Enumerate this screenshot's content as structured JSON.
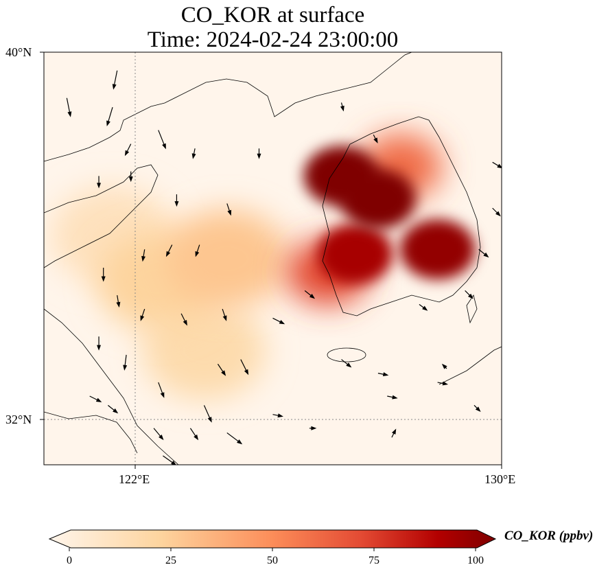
{
  "title": {
    "line1": "CO_KOR at surface",
    "line2": "Time: 2024-02-24 23:00:00"
  },
  "axes": {
    "lon_range": [
      120,
      130
    ],
    "lat_range": [
      31,
      40
    ],
    "lon_ticks": [
      {
        "value": 122,
        "label": "122°E"
      },
      {
        "value": 130,
        "label": "130°E"
      }
    ],
    "lat_ticks": [
      {
        "value": 40,
        "label": "40°N"
      },
      {
        "value": 32,
        "label": "32°N"
      }
    ],
    "gridlines": "dotted"
  },
  "colorbar": {
    "label": "CO_KOR (ppbv)",
    "min": 0,
    "max": 100,
    "extend": "both",
    "ticks": [
      "0",
      "25",
      "50",
      "75",
      "100"
    ],
    "colors": [
      "#fff5eb",
      "#fdd49e",
      "#fc8d59",
      "#d7301f",
      "#b30000",
      "#7f0000"
    ]
  },
  "chart_data": {
    "type": "heatmap",
    "variable": "CO_KOR",
    "units": "ppbv",
    "plume_centers": [
      {
        "lon": 126.5,
        "lat": 37.3,
        "value": 100
      },
      {
        "lon": 127.3,
        "lat": 36.8,
        "value": 100
      },
      {
        "lon": 126.8,
        "lat": 35.6,
        "value": 90
      },
      {
        "lon": 128.6,
        "lat": 35.7,
        "value": 95
      },
      {
        "lon": 126.2,
        "lat": 35.2,
        "value": 70
      },
      {
        "lon": 127.8,
        "lat": 37.5,
        "value": 60
      },
      {
        "lon": 124.0,
        "lat": 35.5,
        "value": 30
      },
      {
        "lon": 122.5,
        "lat": 35.0,
        "value": 25
      },
      {
        "lon": 123.5,
        "lat": 33.5,
        "value": 20
      },
      {
        "lon": 121.5,
        "lat": 36.0,
        "value": 15
      }
    ],
    "wind_vectors": [
      [
        120.5,
        39.0,
        0.2,
        -1
      ],
      [
        121.6,
        39.6,
        -0.2,
        -1
      ],
      [
        121.5,
        38.8,
        -0.3,
        -1
      ],
      [
        122.5,
        38.3,
        0.4,
        -1
      ],
      [
        121.9,
        38.0,
        -0.3,
        -0.6
      ],
      [
        123.3,
        37.9,
        -0.1,
        -0.5
      ],
      [
        124.7,
        37.9,
        0,
        -0.5
      ],
      [
        126.5,
        38.9,
        0.1,
        -0.4
      ],
      [
        127.2,
        38.2,
        0.2,
        -0.4
      ],
      [
        121.2,
        37.3,
        0,
        -0.6
      ],
      [
        121.9,
        37.4,
        0,
        -0.5
      ],
      [
        122.9,
        36.9,
        0,
        -0.6
      ],
      [
        124.0,
        36.7,
        0.2,
        -0.6
      ],
      [
        123.4,
        35.8,
        -0.2,
        -0.6
      ],
      [
        122.8,
        35.8,
        -0.3,
        -0.6
      ],
      [
        122.2,
        35.7,
        -0.1,
        -0.6
      ],
      [
        121.3,
        35.3,
        0,
        -0.7
      ],
      [
        121.6,
        34.7,
        0.1,
        -0.6
      ],
      [
        122.2,
        34.4,
        -0.2,
        -0.6
      ],
      [
        123.0,
        34.3,
        0.3,
        -0.6
      ],
      [
        123.9,
        34.4,
        0.2,
        -0.6
      ],
      [
        121.2,
        33.8,
        0,
        -0.7
      ],
      [
        121.8,
        33.4,
        -0.1,
        -0.8
      ],
      [
        122.5,
        32.8,
        0.3,
        -0.8
      ],
      [
        123.8,
        33.2,
        0.4,
        -0.6
      ],
      [
        124.3,
        33.3,
        0.4,
        -0.8
      ],
      [
        123.5,
        32.3,
        0.4,
        -0.9
      ],
      [
        121.0,
        32.5,
        0.6,
        -0.3
      ],
      [
        121.4,
        32.3,
        0.5,
        -0.4
      ],
      [
        122.4,
        31.8,
        0.5,
        -0.6
      ],
      [
        123.2,
        31.8,
        0.4,
        -0.6
      ],
      [
        124.0,
        31.7,
        0.8,
        -0.6
      ],
      [
        122.6,
        31.2,
        0.7,
        -0.5
      ],
      [
        125.0,
        34.2,
        0.6,
        -0.3
      ],
      [
        125.7,
        34.8,
        0.5,
        -0.4
      ],
      [
        126.5,
        33.3,
        0.5,
        -0.4
      ],
      [
        127.3,
        33.0,
        0.5,
        -0.1
      ],
      [
        128.2,
        34.5,
        0.4,
        -0.3
      ],
      [
        129.2,
        34.8,
        0.4,
        -0.4
      ],
      [
        129.5,
        35.7,
        0.5,
        -0.4
      ],
      [
        129.8,
        37.6,
        0.5,
        -0.3
      ],
      [
        129.8,
        36.6,
        0.4,
        -0.4
      ],
      [
        128.6,
        32.8,
        0.5,
        -0.1
      ],
      [
        129.4,
        32.3,
        0.3,
        -0.3
      ],
      [
        127.5,
        32.5,
        0.5,
        -0.1
      ],
      [
        125.0,
        32.1,
        0.5,
        -0.1
      ],
      [
        125.8,
        31.8,
        0.3,
        0
      ],
      [
        128.8,
        33.1,
        -0.2,
        0.2
      ],
      [
        127.6,
        31.6,
        0.2,
        0.4
      ]
    ]
  }
}
